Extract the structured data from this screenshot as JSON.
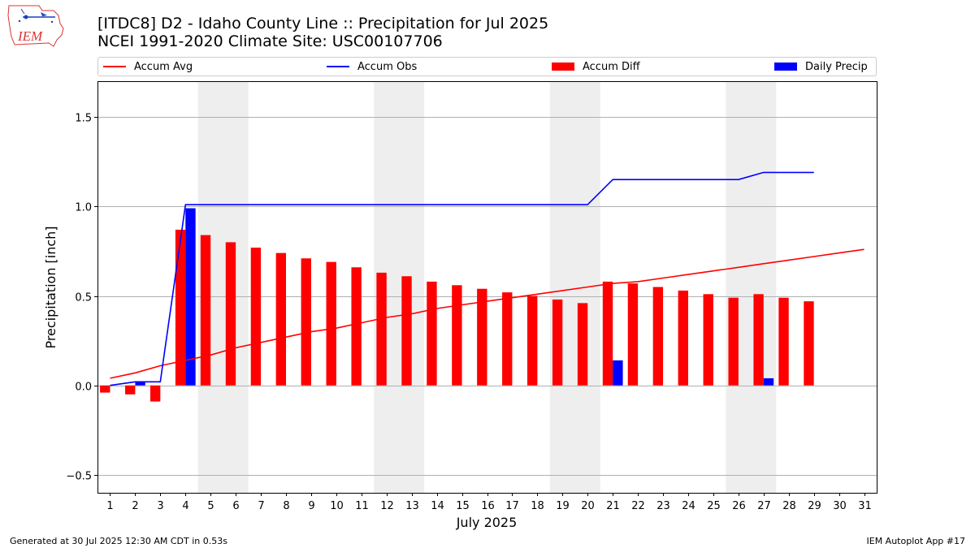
{
  "title_line1": "[ITDC8] D2 - Idaho County Line  :: Precipitation for Jul 2025",
  "title_line2": "NCEI 1991-2020 Climate Site: USC00107706",
  "logo_text": "IEM",
  "footer_left": "Generated at 30 Jul 2025 12:30 AM CDT in 0.53s",
  "footer_right": "IEM Autoplot App #17",
  "legend": [
    {
      "label": "Accum Avg",
      "color": "#ff0000",
      "kind": "line"
    },
    {
      "label": "Accum Obs",
      "color": "#0000ff",
      "kind": "line"
    },
    {
      "label": "Accum Diff",
      "color": "#ff0000",
      "kind": "patch"
    },
    {
      "label": "Daily Precip",
      "color": "#0000ff",
      "kind": "patch"
    }
  ],
  "chart_data": {
    "type": "bar",
    "xlabel": "July 2025",
    "ylabel": "Precipitation [inch]",
    "ylim": [
      -0.6,
      1.7
    ],
    "xlim": [
      0.5,
      31.5
    ],
    "yticks": [
      -0.5,
      0.0,
      0.5,
      1.0,
      1.5
    ],
    "ytick_labels": [
      "−0.5",
      "0.0",
      "0.5",
      "1.0",
      "1.5"
    ],
    "days": [
      1,
      2,
      3,
      4,
      5,
      6,
      7,
      8,
      9,
      10,
      11,
      12,
      13,
      14,
      15,
      16,
      17,
      18,
      19,
      20,
      21,
      22,
      23,
      24,
      25,
      26,
      27,
      28,
      29,
      30,
      31
    ],
    "grid": "horizontal",
    "weekend_shading": [
      [
        4.5,
        6.5
      ],
      [
        11.5,
        13.5
      ],
      [
        18.5,
        20.5
      ],
      [
        25.5,
        27.5
      ]
    ],
    "series": [
      {
        "name": "Accum Avg",
        "type": "line",
        "color": "#ff0000",
        "x": [
          1,
          2,
          3,
          4,
          5,
          6,
          7,
          8,
          9,
          10,
          11,
          12,
          13,
          14,
          15,
          16,
          17,
          18,
          19,
          20,
          21,
          22,
          23,
          24,
          25,
          26,
          27,
          28,
          29,
          30,
          31
        ],
        "values": [
          0.04,
          0.07,
          0.11,
          0.14,
          0.17,
          0.21,
          0.24,
          0.27,
          0.3,
          0.32,
          0.35,
          0.38,
          0.4,
          0.43,
          0.45,
          0.47,
          0.49,
          0.51,
          0.53,
          0.55,
          0.57,
          0.58,
          0.6,
          0.62,
          0.64,
          0.66,
          0.68,
          0.7,
          0.72,
          0.74,
          0.76
        ]
      },
      {
        "name": "Accum Obs",
        "type": "line",
        "color": "#0000ff",
        "x": [
          1,
          2,
          3,
          4,
          5,
          6,
          7,
          8,
          9,
          10,
          11,
          12,
          13,
          14,
          15,
          16,
          17,
          18,
          19,
          20,
          21,
          22,
          23,
          24,
          25,
          26,
          27,
          28,
          29
        ],
        "values": [
          0.0,
          0.02,
          0.02,
          1.01,
          1.01,
          1.01,
          1.01,
          1.01,
          1.01,
          1.01,
          1.01,
          1.01,
          1.01,
          1.01,
          1.01,
          1.01,
          1.01,
          1.01,
          1.01,
          1.01,
          1.15,
          1.15,
          1.15,
          1.15,
          1.15,
          1.15,
          1.19,
          1.19,
          1.19
        ]
      },
      {
        "name": "Accum Diff",
        "type": "bar",
        "color": "#ff0000",
        "x": [
          1,
          2,
          3,
          4,
          5,
          6,
          7,
          8,
          9,
          10,
          11,
          12,
          13,
          14,
          15,
          16,
          17,
          18,
          19,
          20,
          21,
          22,
          23,
          24,
          25,
          26,
          27,
          28,
          29
        ],
        "values": [
          -0.04,
          -0.05,
          -0.09,
          0.87,
          0.84,
          0.8,
          0.77,
          0.74,
          0.71,
          0.69,
          0.66,
          0.63,
          0.61,
          0.58,
          0.56,
          0.54,
          0.52,
          0.5,
          0.48,
          0.46,
          0.58,
          0.57,
          0.55,
          0.53,
          0.51,
          0.49,
          0.51,
          0.49,
          0.47
        ]
      },
      {
        "name": "Daily Precip",
        "type": "bar",
        "color": "#0000ff",
        "x": [
          2,
          4,
          21,
          27
        ],
        "values": [
          0.02,
          0.99,
          0.14,
          0.04
        ]
      }
    ]
  }
}
